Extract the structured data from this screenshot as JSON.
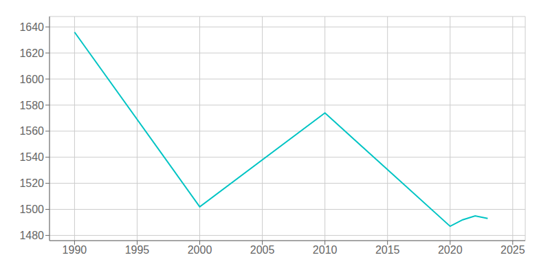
{
  "chart_data": {
    "type": "line",
    "x": [
      1990,
      2000,
      2010,
      2020,
      2021,
      2022,
      2023
    ],
    "values": [
      1636,
      1502,
      1574,
      1487,
      1492,
      1495,
      1493
    ],
    "color": "#00C4C4",
    "xlim": [
      1988,
      2026
    ],
    "xticks": [
      1990,
      1995,
      2000,
      2005,
      2010,
      2015,
      2020,
      2025
    ],
    "ylim": [
      1476,
      1648
    ],
    "yticks": [
      1480,
      1500,
      1520,
      1540,
      1560,
      1580,
      1600,
      1620,
      1640
    ],
    "grid": true
  }
}
